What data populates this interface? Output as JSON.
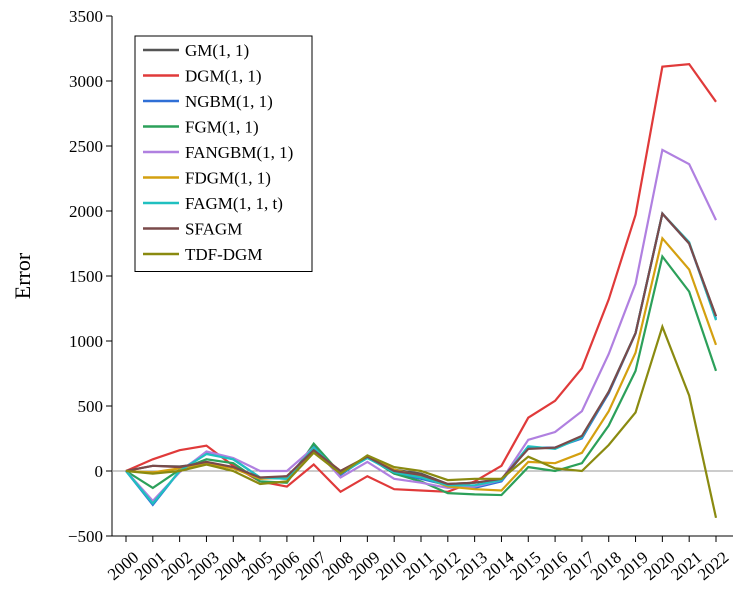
{
  "chart_data": {
    "type": "line",
    "ylabel": "Error",
    "x": [
      "2000",
      "2001",
      "2002",
      "2003",
      "2004",
      "2005",
      "2006",
      "2007",
      "2008",
      "2009",
      "2010",
      "2011",
      "2012",
      "2013",
      "2014",
      "2015",
      "2016",
      "2017",
      "2018",
      "2019",
      "2020",
      "2021",
      "2022"
    ],
    "series": [
      {
        "name": "GM(1, 1)",
        "color": "#555555",
        "values": [
          0,
          40,
          35,
          60,
          30,
          -60,
          -40,
          150,
          0,
          110,
          10,
          -20,
          -100,
          -90,
          -70,
          180,
          180,
          260,
          600,
          1060,
          1980,
          1750,
          1190
        ]
      },
      {
        "name": "DGM(1, 1)",
        "color": "#e03a3a",
        "values": [
          0,
          90,
          160,
          195,
          40,
          -80,
          -120,
          50,
          -160,
          -40,
          -140,
          -150,
          -160,
          -80,
          40,
          410,
          540,
          790,
          1320,
          1970,
          3110,
          3130,
          2840
        ]
      },
      {
        "name": "NGBM(1, 1)",
        "color": "#2f6fd6",
        "values": [
          0,
          -260,
          0,
          140,
          90,
          -50,
          -60,
          190,
          -30,
          110,
          -20,
          -60,
          -110,
          -130,
          -80,
          180,
          180,
          250,
          600,
          1060,
          1980,
          1750,
          1170
        ]
      },
      {
        "name": "FGM(1, 1)",
        "color": "#2ca05a",
        "values": [
          0,
          -130,
          10,
          90,
          60,
          -80,
          -90,
          210,
          -20,
          110,
          -20,
          -80,
          -170,
          -180,
          -185,
          30,
          0,
          60,
          350,
          770,
          1650,
          1380,
          770
        ]
      },
      {
        "name": "FANGBM(1, 1)",
        "color": "#b080e0",
        "values": [
          0,
          -230,
          -10,
          150,
          100,
          0,
          0,
          180,
          -50,
          70,
          -60,
          -90,
          -130,
          -120,
          -70,
          240,
          300,
          460,
          900,
          1440,
          2470,
          2360,
          1930
        ]
      },
      {
        "name": "FDGM(1, 1)",
        "color": "#d4a010",
        "values": [
          0,
          -10,
          20,
          60,
          20,
          -60,
          -50,
          160,
          0,
          110,
          10,
          -40,
          -120,
          -140,
          -150,
          70,
          60,
          140,
          460,
          910,
          1790,
          1550,
          970
        ]
      },
      {
        "name": "FAGM(1, 1, t)",
        "color": "#20c0c0",
        "values": [
          0,
          -250,
          0,
          130,
          90,
          -50,
          -60,
          180,
          -20,
          100,
          -10,
          -50,
          -110,
          -110,
          -70,
          190,
          170,
          260,
          610,
          1060,
          1980,
          1760,
          1160
        ]
      },
      {
        "name": "SFAGM",
        "color": "#7a4a4a",
        "values": [
          0,
          40,
          30,
          70,
          30,
          -50,
          -40,
          160,
          0,
          110,
          0,
          -30,
          -100,
          -90,
          -60,
          170,
          180,
          270,
          610,
          1060,
          1980,
          1750,
          1190
        ]
      },
      {
        "name": "TDF-DGM",
        "color": "#8a8a10",
        "values": [
          0,
          -20,
          0,
          50,
          0,
          -100,
          -80,
          140,
          -20,
          120,
          30,
          0,
          -70,
          -60,
          -60,
          110,
          20,
          0,
          200,
          450,
          1110,
          580,
          -360
        ]
      }
    ],
    "ylim": [
      -500,
      3500
    ],
    "yticks": [
      {
        "value": -500,
        "label": "−500"
      },
      0,
      500,
      1000,
      1500,
      2000,
      2500,
      3000,
      3500
    ],
    "legend": "upper left"
  }
}
